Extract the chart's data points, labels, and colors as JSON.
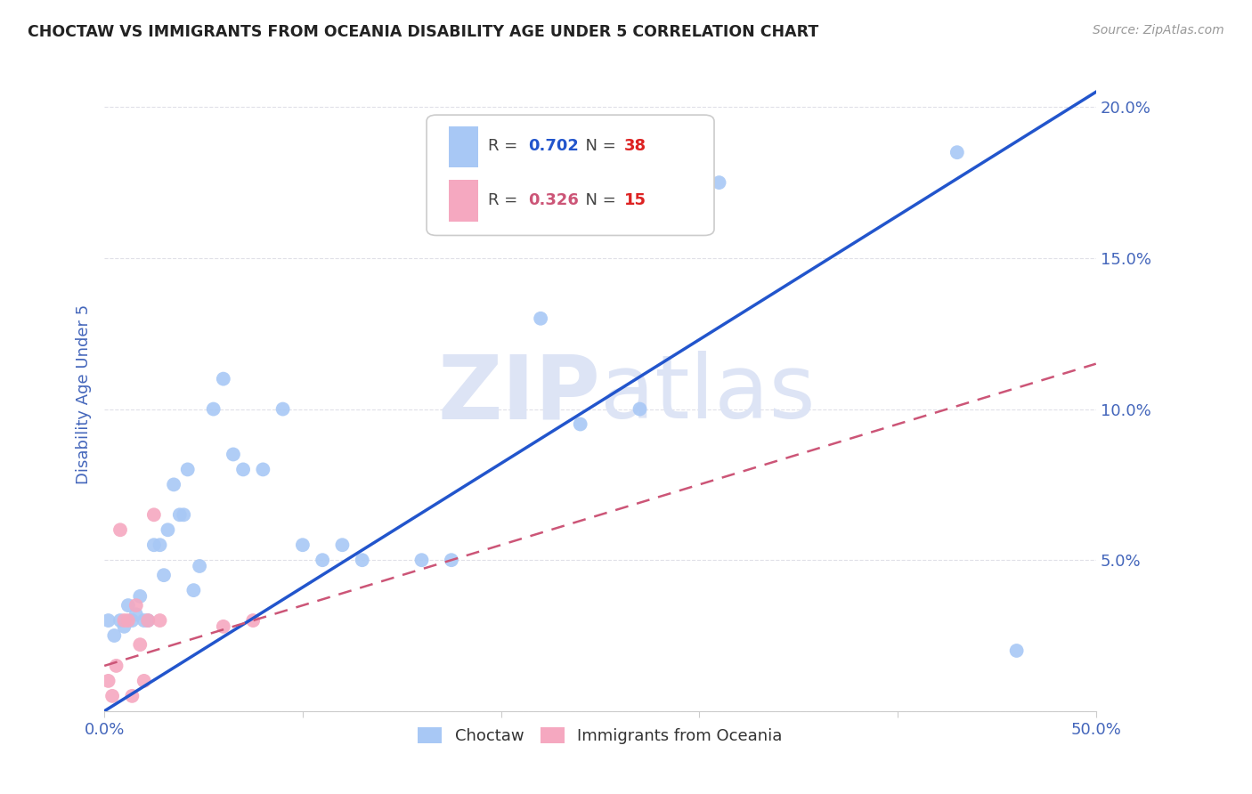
{
  "title": "CHOCTAW VS IMMIGRANTS FROM OCEANIA DISABILITY AGE UNDER 5 CORRELATION CHART",
  "source": "Source: ZipAtlas.com",
  "ylabel": "Disability Age Under 5",
  "xlim": [
    0.0,
    0.5
  ],
  "ylim": [
    0.0,
    0.21
  ],
  "xticks": [
    0.0,
    0.1,
    0.2,
    0.3,
    0.4,
    0.5
  ],
  "yticks": [
    0.0,
    0.05,
    0.1,
    0.15,
    0.2
  ],
  "choctaw_x": [
    0.002,
    0.005,
    0.008,
    0.01,
    0.012,
    0.014,
    0.016,
    0.018,
    0.02,
    0.022,
    0.025,
    0.028,
    0.03,
    0.032,
    0.035,
    0.038,
    0.04,
    0.042,
    0.045,
    0.048,
    0.055,
    0.06,
    0.065,
    0.07,
    0.08,
    0.09,
    0.1,
    0.11,
    0.12,
    0.13,
    0.16,
    0.175,
    0.22,
    0.24,
    0.27,
    0.31,
    0.43,
    0.46
  ],
  "choctaw_y": [
    0.03,
    0.025,
    0.03,
    0.028,
    0.035,
    0.03,
    0.032,
    0.038,
    0.03,
    0.03,
    0.055,
    0.055,
    0.045,
    0.06,
    0.075,
    0.065,
    0.065,
    0.08,
    0.04,
    0.048,
    0.1,
    0.11,
    0.085,
    0.08,
    0.08,
    0.1,
    0.055,
    0.05,
    0.055,
    0.05,
    0.05,
    0.05,
    0.13,
    0.095,
    0.1,
    0.175,
    0.185,
    0.02
  ],
  "oceania_x": [
    0.002,
    0.004,
    0.006,
    0.008,
    0.01,
    0.012,
    0.014,
    0.016,
    0.018,
    0.02,
    0.022,
    0.025,
    0.028,
    0.06,
    0.075
  ],
  "oceania_y": [
    0.01,
    0.005,
    0.015,
    0.06,
    0.03,
    0.03,
    0.005,
    0.035,
    0.022,
    0.01,
    0.03,
    0.065,
    0.03,
    0.028,
    0.03
  ],
  "choctaw_R": 0.702,
  "choctaw_N": 38,
  "oceania_R": 0.326,
  "oceania_N": 15,
  "choctaw_color": "#a8c8f5",
  "oceania_color": "#f5a8c0",
  "choctaw_line_color": "#2255cc",
  "oceania_line_color": "#cc5577",
  "background_color": "#ffffff",
  "grid_color": "#e0e0e8",
  "axis_color": "#4466bb",
  "title_color": "#222222",
  "watermark_color": "#dde4f5",
  "scatter_size": 130,
  "choctaw_line_x": [
    0.0,
    0.5
  ],
  "choctaw_line_y": [
    0.0,
    0.205
  ],
  "oceania_line_x": [
    0.0,
    0.5
  ],
  "oceania_line_y": [
    0.015,
    0.115
  ]
}
